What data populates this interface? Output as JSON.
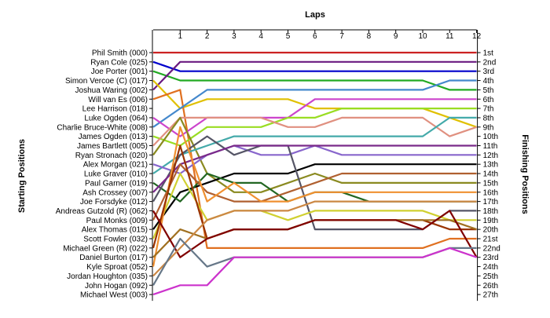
{
  "chart_data": {
    "type": "line",
    "title": "",
    "xlabel": "Laps",
    "ylabel_left": "Starting Positions",
    "ylabel_right": "Finishing Positions",
    "laps": [
      0,
      1,
      2,
      3,
      4,
      5,
      6,
      7,
      8,
      9,
      10,
      11,
      12
    ],
    "x_ticks": [
      "1",
      "2",
      "3",
      "4",
      "5",
      "6",
      "7",
      "8",
      "9",
      "10",
      "11",
      "12"
    ],
    "starting_grid": [
      "Phil Smith (000)",
      "Ryan Cole (025)",
      "Joe Porter (001)",
      "Simon Vercoe  (C) (017)",
      "Joshua Waring (002)",
      "Will van Es (006)",
      "Lee Harrison (018)",
      "Luke Ogden (064)",
      "Charlie Bruce-White (008)",
      "James Ogden (013)",
      "James Bartlett (005)",
      "Ryan Stronach (020)",
      "Alex Morgan (021)",
      "Luke Graver (010)",
      "Paul Garner (019)",
      "Ash Crossey (007)",
      "Joe Forsdyke (012)",
      "Andreas Gutzold (R) (062)",
      "Paul Monks (009)",
      "Alex Thomas (015)",
      "Scott Fowler (032)",
      "Michael Green (R) (022)",
      "Daniel Burton (017)",
      "Kyle Sproat (052)",
      "Jordan Houghton (035)",
      "John Hogan (092)",
      "Michael West (003)"
    ],
    "finishing_labels": [
      "1st",
      "2nd",
      "3rd",
      "4th",
      "5th",
      "6th",
      "7th",
      "8th",
      "9th",
      "10th",
      "11th",
      "12th",
      "13th",
      "14th",
      "15th",
      "16th",
      "17th",
      "18th",
      "19th",
      "20th",
      "21st",
      "22nd",
      "23rd",
      "24th",
      "25th",
      "26th",
      "27th"
    ],
    "series": [
      {
        "color": "#cc2222",
        "positions": [
          1,
          1,
          1,
          1,
          1,
          1,
          1,
          1,
          1,
          1,
          1,
          1,
          1
        ]
      },
      {
        "color": "#0000cc",
        "positions": [
          2,
          3,
          3,
          3,
          3,
          3,
          3,
          3,
          3,
          3,
          3,
          3,
          3
        ]
      },
      {
        "color": "#22aa22",
        "positions": [
          3,
          4,
          4,
          4,
          4,
          4,
          4,
          4,
          4,
          4,
          4,
          5,
          5
        ]
      },
      {
        "color": "#6a1a80",
        "positions": [
          5,
          2,
          2,
          2,
          2,
          2,
          2,
          2,
          2,
          2,
          2,
          2,
          2
        ]
      },
      {
        "color": "#e0c000",
        "positions": [
          4,
          7,
          6,
          6,
          6,
          6,
          7,
          7,
          7,
          7,
          7,
          8,
          9
        ]
      },
      {
        "color": "#e07020",
        "positions": [
          6,
          5,
          22,
          22,
          22,
          22,
          22,
          22,
          22,
          22,
          22,
          21,
          21
        ]
      },
      {
        "color": "#4488cc",
        "positions": [
          9,
          7,
          5,
          5,
          5,
          5,
          5,
          5,
          5,
          5,
          5,
          4,
          4
        ]
      },
      {
        "color": "#cc44cc",
        "positions": [
          8,
          10,
          8,
          8,
          8,
          8,
          6,
          6,
          6,
          6,
          6,
          6,
          6
        ]
      },
      {
        "color": "#99dd22",
        "positions": [
          10,
          11,
          9,
          9,
          9,
          8,
          8,
          7,
          7,
          7,
          7,
          7,
          7
        ]
      },
      {
        "color": "#e09080",
        "positions": [
          11,
          8,
          8,
          8,
          8,
          9,
          9,
          8,
          8,
          8,
          8,
          10,
          9
        ]
      },
      {
        "color": "#8a8a20",
        "positions": [
          12,
          8,
          14,
          16,
          16,
          15,
          14,
          15,
          15,
          15,
          15,
          15,
          15
        ]
      },
      {
        "color": "#44aaaa",
        "positions": [
          14,
          12,
          11,
          10,
          10,
          10,
          10,
          10,
          10,
          10,
          10,
          8,
          8
        ]
      },
      {
        "color": "#8866cc",
        "positions": [
          13,
          14,
          12,
          11,
          12,
          12,
          11,
          12,
          12,
          12,
          12,
          12,
          12
        ]
      },
      {
        "color": "#000000",
        "positions": [
          20,
          16,
          15,
          14,
          14,
          14,
          13,
          13,
          13,
          13,
          13,
          13,
          13
        ]
      },
      {
        "color": "#226622",
        "positions": [
          15,
          17,
          14,
          15,
          15,
          17,
          16,
          16,
          17,
          17,
          17,
          17,
          17
        ]
      },
      {
        "color": "#555566",
        "positions": [
          17,
          12,
          10,
          12,
          11,
          11,
          20,
          20,
          20,
          20,
          20,
          18,
          18
        ]
      },
      {
        "color": "#7a2a8a",
        "positions": [
          16,
          13,
          12,
          11,
          11,
          11,
          11,
          11,
          11,
          11,
          11,
          11,
          11
        ]
      },
      {
        "color": "#b06030",
        "positions": [
          19,
          13,
          16,
          17,
          17,
          16,
          15,
          14,
          14,
          14,
          14,
          14,
          14
        ]
      },
      {
        "color": "#d0d030",
        "positions": [
          21,
          14,
          19,
          18,
          18,
          19,
          18,
          18,
          18,
          18,
          18,
          19,
          19
        ]
      },
      {
        "color": "#f09030",
        "positions": [
          24,
          9,
          17,
          15,
          17,
          17,
          16,
          16,
          16,
          16,
          16,
          16,
          16
        ]
      },
      {
        "color": "#993300",
        "positions": [
          22,
          11,
          21,
          20,
          20,
          20,
          19,
          19,
          19,
          19,
          19,
          20,
          20
        ]
      },
      {
        "color": "#a07020",
        "positions": [
          23,
          20,
          21,
          20,
          20,
          20,
          19,
          19,
          19,
          19,
          19,
          19,
          20
        ]
      },
      {
        "color": "#800000",
        "positions": [
          18,
          23,
          21,
          20,
          20,
          20,
          19,
          19,
          19,
          19,
          20,
          18,
          23
        ]
      },
      {
        "color": "#cc8844",
        "positions": [
          25,
          22,
          19,
          18,
          18,
          18,
          17,
          17,
          17,
          17,
          17,
          17,
          17
        ]
      },
      {
        "color": "#667788",
        "positions": [
          26,
          21,
          24,
          23,
          23,
          23,
          23,
          23,
          23,
          23,
          23,
          22,
          22
        ]
      },
      {
        "color": "#cc33cc",
        "positions": [
          27,
          26,
          26,
          23,
          23,
          23,
          23,
          23,
          23,
          23,
          23,
          22,
          23
        ]
      }
    ]
  }
}
